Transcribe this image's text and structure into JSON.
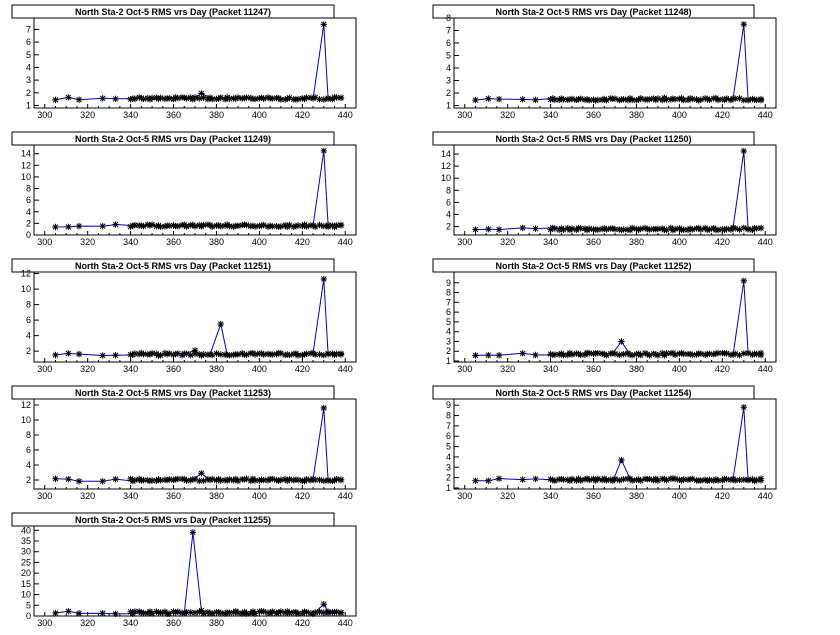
{
  "colors": {
    "line": "#0000cc",
    "marker": "#000000",
    "frame": "#000000",
    "background": "#ffffff"
  },
  "chart_data": [
    {
      "type": "line",
      "title": "North Sta-2 Oct-5 RMS vrs Day (Packet 11247)",
      "x_ticks": [
        300,
        320,
        340,
        360,
        380,
        400,
        420,
        440
      ],
      "y_ticks": [
        1,
        2,
        3,
        4,
        5,
        6,
        7
      ],
      "xlim": [
        295,
        445
      ],
      "ylim": [
        0.8,
        7.9
      ],
      "baseline": 1.55,
      "x_days": [
        305,
        311,
        316,
        327,
        333,
        341,
        345,
        349,
        353,
        357,
        361,
        365,
        369,
        373,
        377,
        381,
        385,
        389,
        393,
        397,
        401,
        405,
        409,
        413,
        417,
        421,
        425,
        429,
        430,
        432,
        435,
        438
      ],
      "peaks": [
        {
          "x": 373,
          "y": 1.95
        },
        {
          "x": 430,
          "y": 7.4
        }
      ]
    },
    {
      "type": "line",
      "title": "North Sta-2 Oct-5 RMS vrs Day (Packet 11248)",
      "x_ticks": [
        300,
        320,
        340,
        360,
        380,
        400,
        420,
        440
      ],
      "y_ticks": [
        1,
        2,
        3,
        4,
        5,
        6,
        7,
        8
      ],
      "xlim": [
        295,
        445
      ],
      "ylim": [
        0.8,
        8.0
      ],
      "baseline": 1.5,
      "x_days": [
        305,
        311,
        316,
        327,
        333,
        341,
        345,
        349,
        353,
        357,
        361,
        365,
        369,
        373,
        377,
        381,
        385,
        389,
        393,
        397,
        401,
        405,
        409,
        413,
        417,
        421,
        425,
        429,
        430,
        432,
        435,
        438
      ],
      "peaks": [
        {
          "x": 430,
          "y": 7.5
        }
      ]
    },
    {
      "type": "line",
      "title": "North Sta-2 Oct-5 RMS vrs Day (Packet 11249)",
      "x_ticks": [
        300,
        320,
        340,
        360,
        380,
        400,
        420,
        440
      ],
      "y_ticks": [
        0,
        2,
        4,
        6,
        8,
        10,
        12,
        14
      ],
      "xlim": [
        295,
        445
      ],
      "ylim": [
        0,
        15.5
      ],
      "baseline": 1.6,
      "x_days": [
        305,
        311,
        316,
        327,
        333,
        341,
        345,
        349,
        353,
        357,
        361,
        365,
        369,
        373,
        377,
        381,
        385,
        389,
        393,
        397,
        401,
        405,
        409,
        413,
        417,
        421,
        425,
        429,
        430,
        432,
        435,
        438
      ],
      "peaks": [
        {
          "x": 430,
          "y": 14.5
        }
      ]
    },
    {
      "type": "line",
      "title": "North Sta-2 Oct-5 RMS vrs Day (Packet 11250)",
      "x_ticks": [
        300,
        320,
        340,
        360,
        380,
        400,
        420,
        440
      ],
      "y_ticks": [
        2,
        4,
        6,
        8,
        10,
        12,
        14
      ],
      "xlim": [
        295,
        445
      ],
      "ylim": [
        0.6,
        15.5
      ],
      "baseline": 1.6,
      "x_days": [
        305,
        311,
        316,
        327,
        333,
        341,
        345,
        349,
        353,
        357,
        361,
        365,
        369,
        373,
        377,
        381,
        385,
        389,
        393,
        397,
        401,
        405,
        409,
        413,
        417,
        421,
        425,
        429,
        430,
        432,
        435,
        438
      ],
      "peaks": [
        {
          "x": 430,
          "y": 14.5
        }
      ]
    },
    {
      "type": "line",
      "title": "North Sta-2 Oct-5 RMS vrs Day (Packet 11251)",
      "x_ticks": [
        300,
        320,
        340,
        360,
        380,
        400,
        420,
        440
      ],
      "y_ticks": [
        2,
        4,
        6,
        8,
        10,
        12
      ],
      "xlim": [
        295,
        445
      ],
      "ylim": [
        0.6,
        12.2
      ],
      "baseline": 1.6,
      "x_days": [
        305,
        311,
        316,
        327,
        333,
        341,
        345,
        349,
        353,
        357,
        361,
        365,
        369,
        373,
        377,
        381,
        385,
        389,
        393,
        397,
        401,
        405,
        409,
        413,
        417,
        421,
        425,
        429,
        430,
        432,
        435,
        438
      ],
      "peaks": [
        {
          "x": 370,
          "y": 2.1
        },
        {
          "x": 382,
          "y": 5.5
        },
        {
          "x": 430,
          "y": 11.3
        }
      ]
    },
    {
      "type": "line",
      "title": "North Sta-2 Oct-5 RMS vrs Day (Packet 11252)",
      "x_ticks": [
        300,
        320,
        340,
        360,
        380,
        400,
        420,
        440
      ],
      "y_ticks": [
        1,
        2,
        3,
        4,
        5,
        6,
        7,
        8,
        9
      ],
      "xlim": [
        295,
        445
      ],
      "ylim": [
        0.9,
        10.1
      ],
      "baseline": 1.7,
      "x_days": [
        305,
        311,
        316,
        327,
        333,
        341,
        345,
        349,
        353,
        357,
        361,
        365,
        369,
        373,
        377,
        381,
        385,
        389,
        393,
        397,
        401,
        405,
        409,
        413,
        417,
        421,
        425,
        429,
        430,
        432,
        435,
        438
      ],
      "peaks": [
        {
          "x": 373,
          "y": 3.0
        },
        {
          "x": 430,
          "y": 9.2
        }
      ]
    },
    {
      "type": "line",
      "title": "North Sta-2 Oct-5 RMS vrs Day (Packet 11253)",
      "x_ticks": [
        300,
        320,
        340,
        360,
        380,
        400,
        420,
        440
      ],
      "y_ticks": [
        2,
        4,
        6,
        8,
        10,
        12
      ],
      "xlim": [
        295,
        445
      ],
      "ylim": [
        0.8,
        12.8
      ],
      "baseline": 2.0,
      "x_days": [
        305,
        311,
        316,
        327,
        333,
        341,
        345,
        349,
        353,
        357,
        361,
        365,
        369,
        373,
        377,
        381,
        385,
        389,
        393,
        397,
        401,
        405,
        409,
        413,
        417,
        421,
        425,
        429,
        430,
        432,
        435,
        438
      ],
      "peaks": [
        {
          "x": 373,
          "y": 2.9
        },
        {
          "x": 430,
          "y": 11.6
        }
      ]
    },
    {
      "type": "line",
      "title": "North Sta-2 Oct-5 RMS vrs Day (Packet 11254)",
      "x_ticks": [
        300,
        320,
        340,
        360,
        380,
        400,
        420,
        440
      ],
      "y_ticks": [
        1,
        2,
        3,
        4,
        5,
        6,
        7,
        8,
        9
      ],
      "xlim": [
        295,
        445
      ],
      "ylim": [
        0.9,
        9.6
      ],
      "baseline": 1.8,
      "x_days": [
        305,
        311,
        316,
        327,
        333,
        341,
        345,
        349,
        353,
        357,
        361,
        365,
        369,
        373,
        377,
        381,
        385,
        389,
        393,
        397,
        401,
        405,
        409,
        413,
        417,
        421,
        425,
        429,
        430,
        432,
        435,
        438
      ],
      "peaks": [
        {
          "x": 373,
          "y": 3.7
        },
        {
          "x": 430,
          "y": 8.8
        }
      ]
    },
    {
      "type": "line",
      "title": "North Sta-2 Oct-5 RMS vrs Day (Packet 11255)",
      "x_ticks": [
        300,
        320,
        340,
        360,
        380,
        400,
        420,
        440
      ],
      "y_ticks": [
        0,
        5,
        10,
        15,
        20,
        25,
        30,
        35,
        40
      ],
      "xlim": [
        295,
        445
      ],
      "ylim": [
        0,
        42
      ],
      "baseline": 1.6,
      "x_days": [
        305,
        311,
        316,
        327,
        333,
        341,
        345,
        349,
        353,
        357,
        361,
        365,
        369,
        373,
        377,
        381,
        385,
        389,
        393,
        397,
        401,
        405,
        409,
        413,
        417,
        421,
        425,
        429,
        430,
        432,
        435,
        438
      ],
      "peaks": [
        {
          "x": 369,
          "y": 39
        },
        {
          "x": 373,
          "y": 2.5
        },
        {
          "x": 430,
          "y": 5.5
        }
      ]
    }
  ]
}
